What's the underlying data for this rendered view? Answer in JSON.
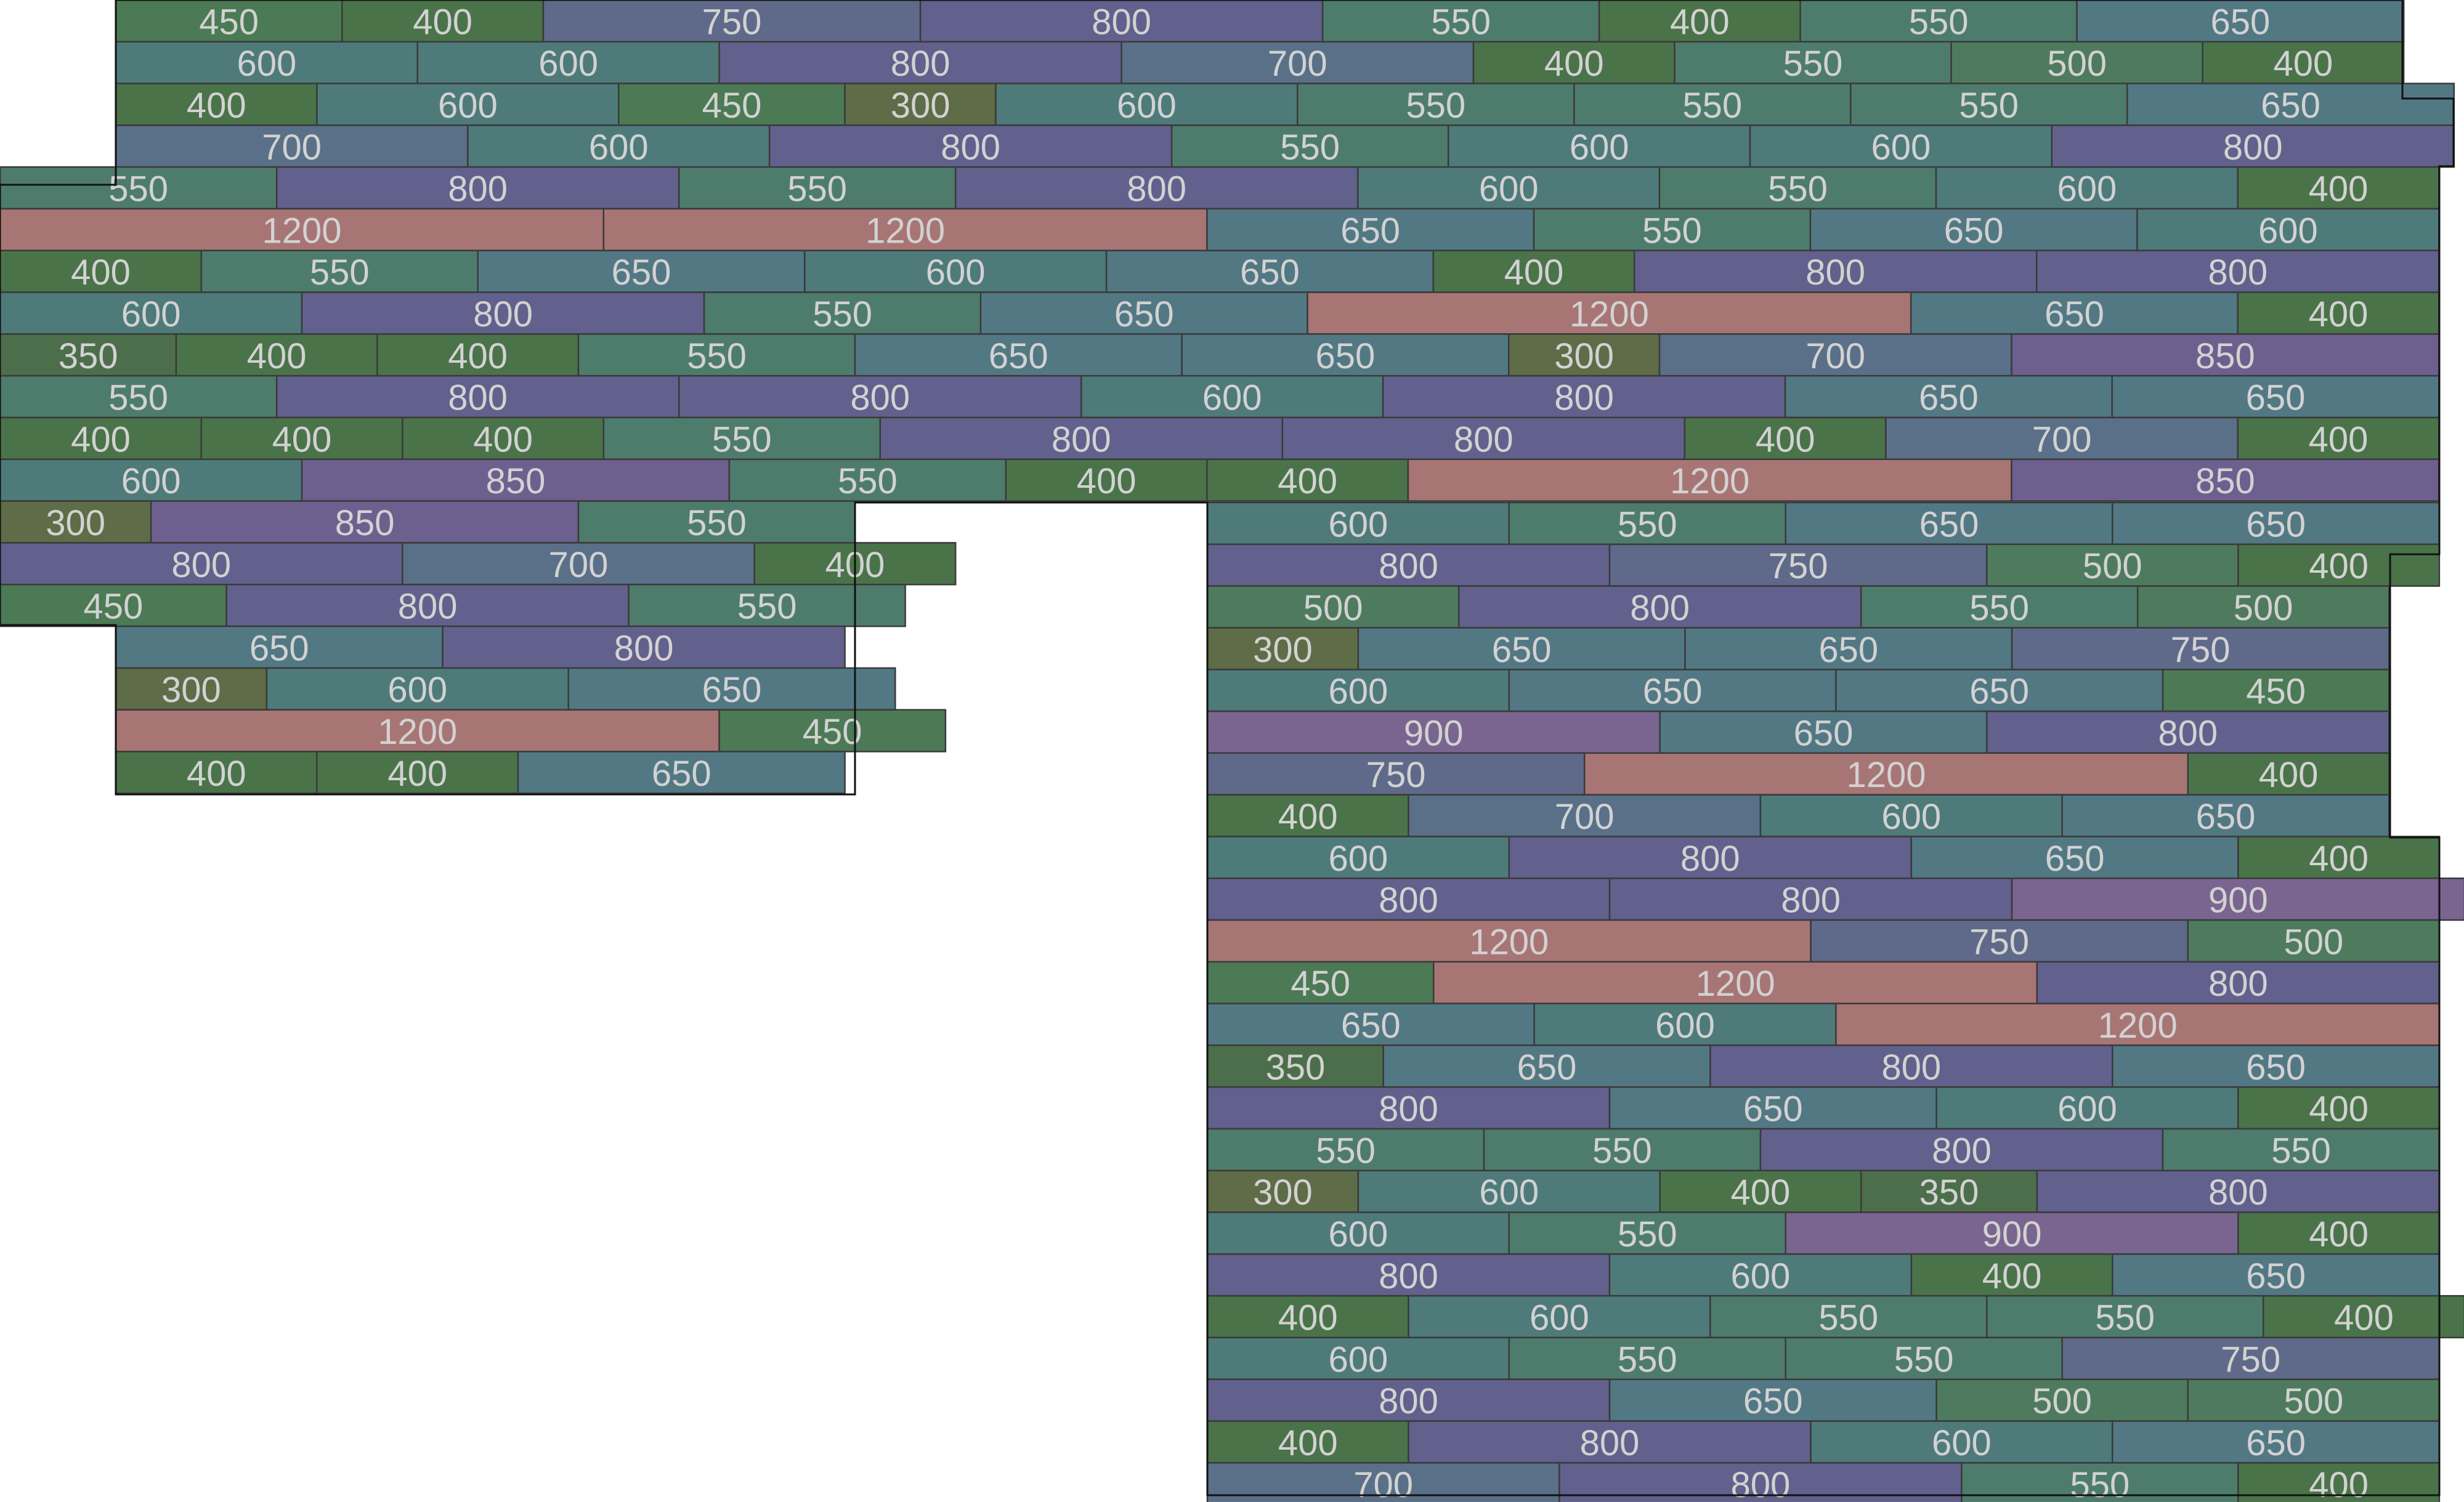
{
  "diagram": {
    "length_colors": {
      "300": "#5e6c47",
      "350": "#4c6e4a",
      "400": "#4a7349",
      "450": "#4b7a55",
      "500": "#4e7b5e",
      "550": "#4e7c6c",
      "600": "#4e7a7a",
      "650": "#527884",
      "700": "#5a7088",
      "750": "#5f6a8a",
      "800": "#62608c",
      "850": "#6d5f8e",
      "900": "#7a6590",
      "1200": "#a87575"
    },
    "rows": [
      {
        "start": 0,
        "planks": [
          "450",
          "400",
          "750",
          "800",
          "550",
          "400",
          "550",
          "650"
        ]
      },
      {
        "start": 0,
        "planks": [
          "600",
          "600",
          "800",
          "700",
          "400",
          "550",
          "500",
          "400"
        ]
      },
      {
        "start": 0,
        "planks": [
          "400",
          "600",
          "450",
          "300",
          "600",
          "550",
          "550",
          "550",
          "650"
        ]
      },
      {
        "start": 0,
        "planks": [
          "700",
          "600",
          "800",
          "550",
          "600",
          "600",
          "800"
        ]
      },
      {
        "start": -230,
        "planks": [
          "550",
          "800",
          "550",
          "800",
          "600",
          "550",
          "600",
          "400"
        ]
      },
      {
        "start": -230,
        "planks": [
          "1200",
          "1200",
          "650",
          "550",
          "650",
          "600"
        ]
      },
      {
        "start": -230,
        "planks": [
          "400",
          "550",
          "650",
          "600",
          "650",
          "400",
          "800",
          "800"
        ]
      },
      {
        "start": -230,
        "planks": [
          "600",
          "800",
          "550",
          "650",
          "1200",
          "650",
          "400"
        ]
      },
      {
        "start": -230,
        "planks": [
          "350",
          "400",
          "400",
          "550",
          "650",
          "650",
          "300",
          "700",
          "850"
        ]
      },
      {
        "start": -230,
        "planks": [
          "550",
          "800",
          "800",
          "600",
          "800",
          "650",
          "650"
        ]
      },
      {
        "start": -230,
        "planks": [
          "400",
          "400",
          "400",
          "550",
          "800",
          "800",
          "400",
          "700",
          "400"
        ]
      },
      {
        "start": -230,
        "planks": [
          "600",
          "850",
          "550",
          "400",
          "400",
          "1200",
          "850"
        ]
      },
      {
        "start": -230,
        "planks": [
          "300",
          "850",
          "550"
        ]
      },
      {
        "start": -230,
        "planks": [
          "800",
          "700",
          "400"
        ]
      },
      {
        "start": -230,
        "planks": [
          "450",
          "800",
          "550"
        ]
      },
      {
        "start": 0,
        "planks": [
          "650",
          "800"
        ]
      },
      {
        "start": 0,
        "planks": [
          "300",
          "600",
          "650"
        ]
      },
      {
        "start": 0,
        "planks": [
          "1200",
          "450"
        ]
      },
      {
        "start": 0,
        "planks": [
          "400",
          "400",
          "650"
        ]
      }
    ],
    "right_rows": [
      {
        "start": 0,
        "planks": [
          "600",
          "550",
          "650",
          "650"
        ]
      },
      {
        "start": 0,
        "planks": [
          "800",
          "750",
          "500",
          "400"
        ]
      },
      {
        "start": 0,
        "planks": [
          "500",
          "800",
          "550",
          "500"
        ]
      },
      {
        "start": 0,
        "planks": [
          "300",
          "650",
          "650",
          "750"
        ]
      },
      {
        "start": 0,
        "planks": [
          "600",
          "650",
          "650",
          "450"
        ]
      },
      {
        "start": 0,
        "planks": [
          "900",
          "650",
          "800"
        ]
      },
      {
        "start": 0,
        "planks": [
          "750",
          "1200",
          "400"
        ]
      },
      {
        "start": 0,
        "planks": [
          "400",
          "700",
          "600",
          "650"
        ]
      },
      {
        "start": 0,
        "planks": [
          "600",
          "800",
          "650",
          "400"
        ]
      },
      {
        "start": 0,
        "planks": [
          "800",
          "800",
          "900"
        ]
      },
      {
        "start": 0,
        "planks": [
          "1200",
          "750",
          "500"
        ]
      },
      {
        "start": 0,
        "planks": [
          "450",
          "1200",
          "800"
        ]
      },
      {
        "start": 0,
        "planks": [
          "650",
          "600",
          "1200"
        ]
      },
      {
        "start": 0,
        "planks": [
          "350",
          "650",
          "800",
          "650"
        ]
      },
      {
        "start": 0,
        "planks": [
          "800",
          "650",
          "600",
          "400"
        ]
      },
      {
        "start": 0,
        "planks": [
          "550",
          "550",
          "800",
          "550"
        ]
      },
      {
        "start": 0,
        "planks": [
          "300",
          "600",
          "400",
          "350",
          "800"
        ]
      },
      {
        "start": 0,
        "planks": [
          "600",
          "550",
          "900",
          "400"
        ]
      },
      {
        "start": 0,
        "planks": [
          "800",
          "600",
          "400",
          "650"
        ]
      },
      {
        "start": 0,
        "planks": [
          "400",
          "600",
          "550",
          "550",
          "400"
        ]
      },
      {
        "start": 0,
        "planks": [
          "600",
          "550",
          "550",
          "750"
        ]
      },
      {
        "start": 0,
        "planks": [
          "800",
          "650",
          "500",
          "500"
        ]
      },
      {
        "start": 0,
        "planks": [
          "400",
          "800",
          "600",
          "650"
        ]
      },
      {
        "start": 0,
        "planks": [
          "700",
          "800",
          "550",
          "400"
        ]
      }
    ]
  }
}
